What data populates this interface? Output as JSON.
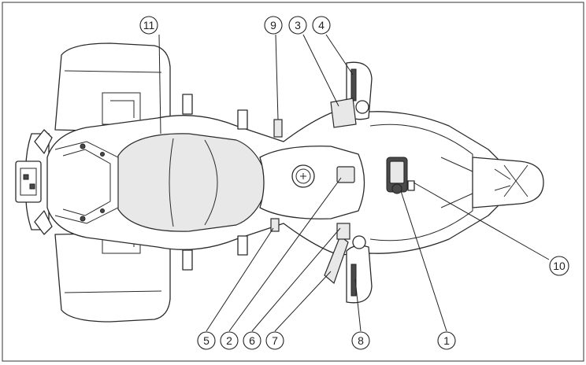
{
  "callouts": {
    "c1": "1",
    "c2": "2",
    "c3": "3",
    "c4": "4",
    "c5": "5",
    "c6": "6",
    "c7": "7",
    "c8": "8",
    "c9": "9",
    "c10": "10",
    "c11": "11"
  },
  "colors": {
    "line": "#2a2a2a",
    "fill": "#ffffff",
    "shade": "#e8e8e8",
    "frame": "#555555"
  }
}
